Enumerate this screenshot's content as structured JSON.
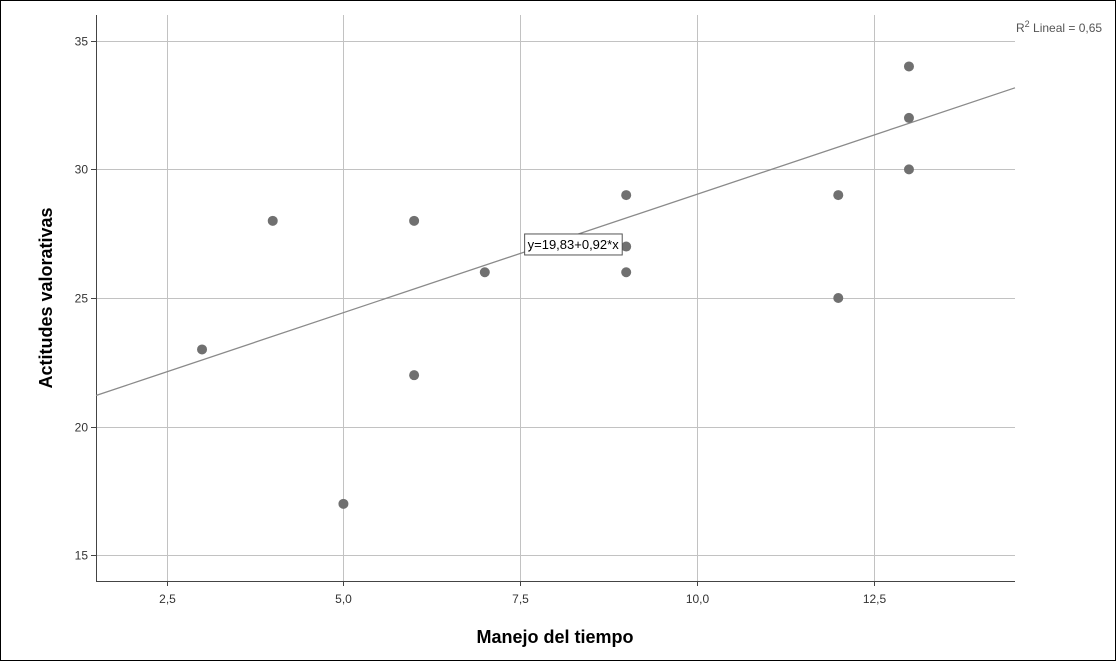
{
  "chart_data": {
    "type": "scatter",
    "title": "",
    "xlabel": "Manejo del tiempo",
    "ylabel": "Actitudes valorativas",
    "xlim": [
      1.5,
      14.5
    ],
    "ylim": [
      14.0,
      36.0
    ],
    "x_ticks": [
      2.5,
      5.0,
      7.5,
      10.0,
      12.5
    ],
    "x_tick_labels": [
      "2,5",
      "5,0",
      "7,5",
      "10,0",
      "12,5"
    ],
    "y_ticks": [
      15,
      20,
      25,
      30,
      35
    ],
    "y_tick_labels": [
      "15",
      "20",
      "25",
      "30",
      "35"
    ],
    "grid": true,
    "points": [
      {
        "x": 3,
        "y": 23
      },
      {
        "x": 4,
        "y": 28
      },
      {
        "x": 5,
        "y": 17
      },
      {
        "x": 6,
        "y": 28
      },
      {
        "x": 6,
        "y": 22
      },
      {
        "x": 7,
        "y": 26
      },
      {
        "x": 9,
        "y": 29
      },
      {
        "x": 9,
        "y": 27
      },
      {
        "x": 9,
        "y": 26
      },
      {
        "x": 12,
        "y": 29
      },
      {
        "x": 12,
        "y": 25
      },
      {
        "x": 13,
        "y": 34
      },
      {
        "x": 13,
        "y": 32
      },
      {
        "x": 13,
        "y": 30
      }
    ],
    "fit_line": {
      "intercept": 19.83,
      "slope": 0.92,
      "equation_label": "y=19,83+0,92*x",
      "equation_anchor_x": 8.25,
      "equation_anchor_y": 27.1
    },
    "r2_label": {
      "prefix": "R",
      "superscript": "2",
      "suffix": " Lineal = 0,65"
    },
    "colors": {
      "points": "#707070",
      "fit_line": "#8a8a8a",
      "grid": "#c2c2c2",
      "axis": "#444444"
    }
  }
}
